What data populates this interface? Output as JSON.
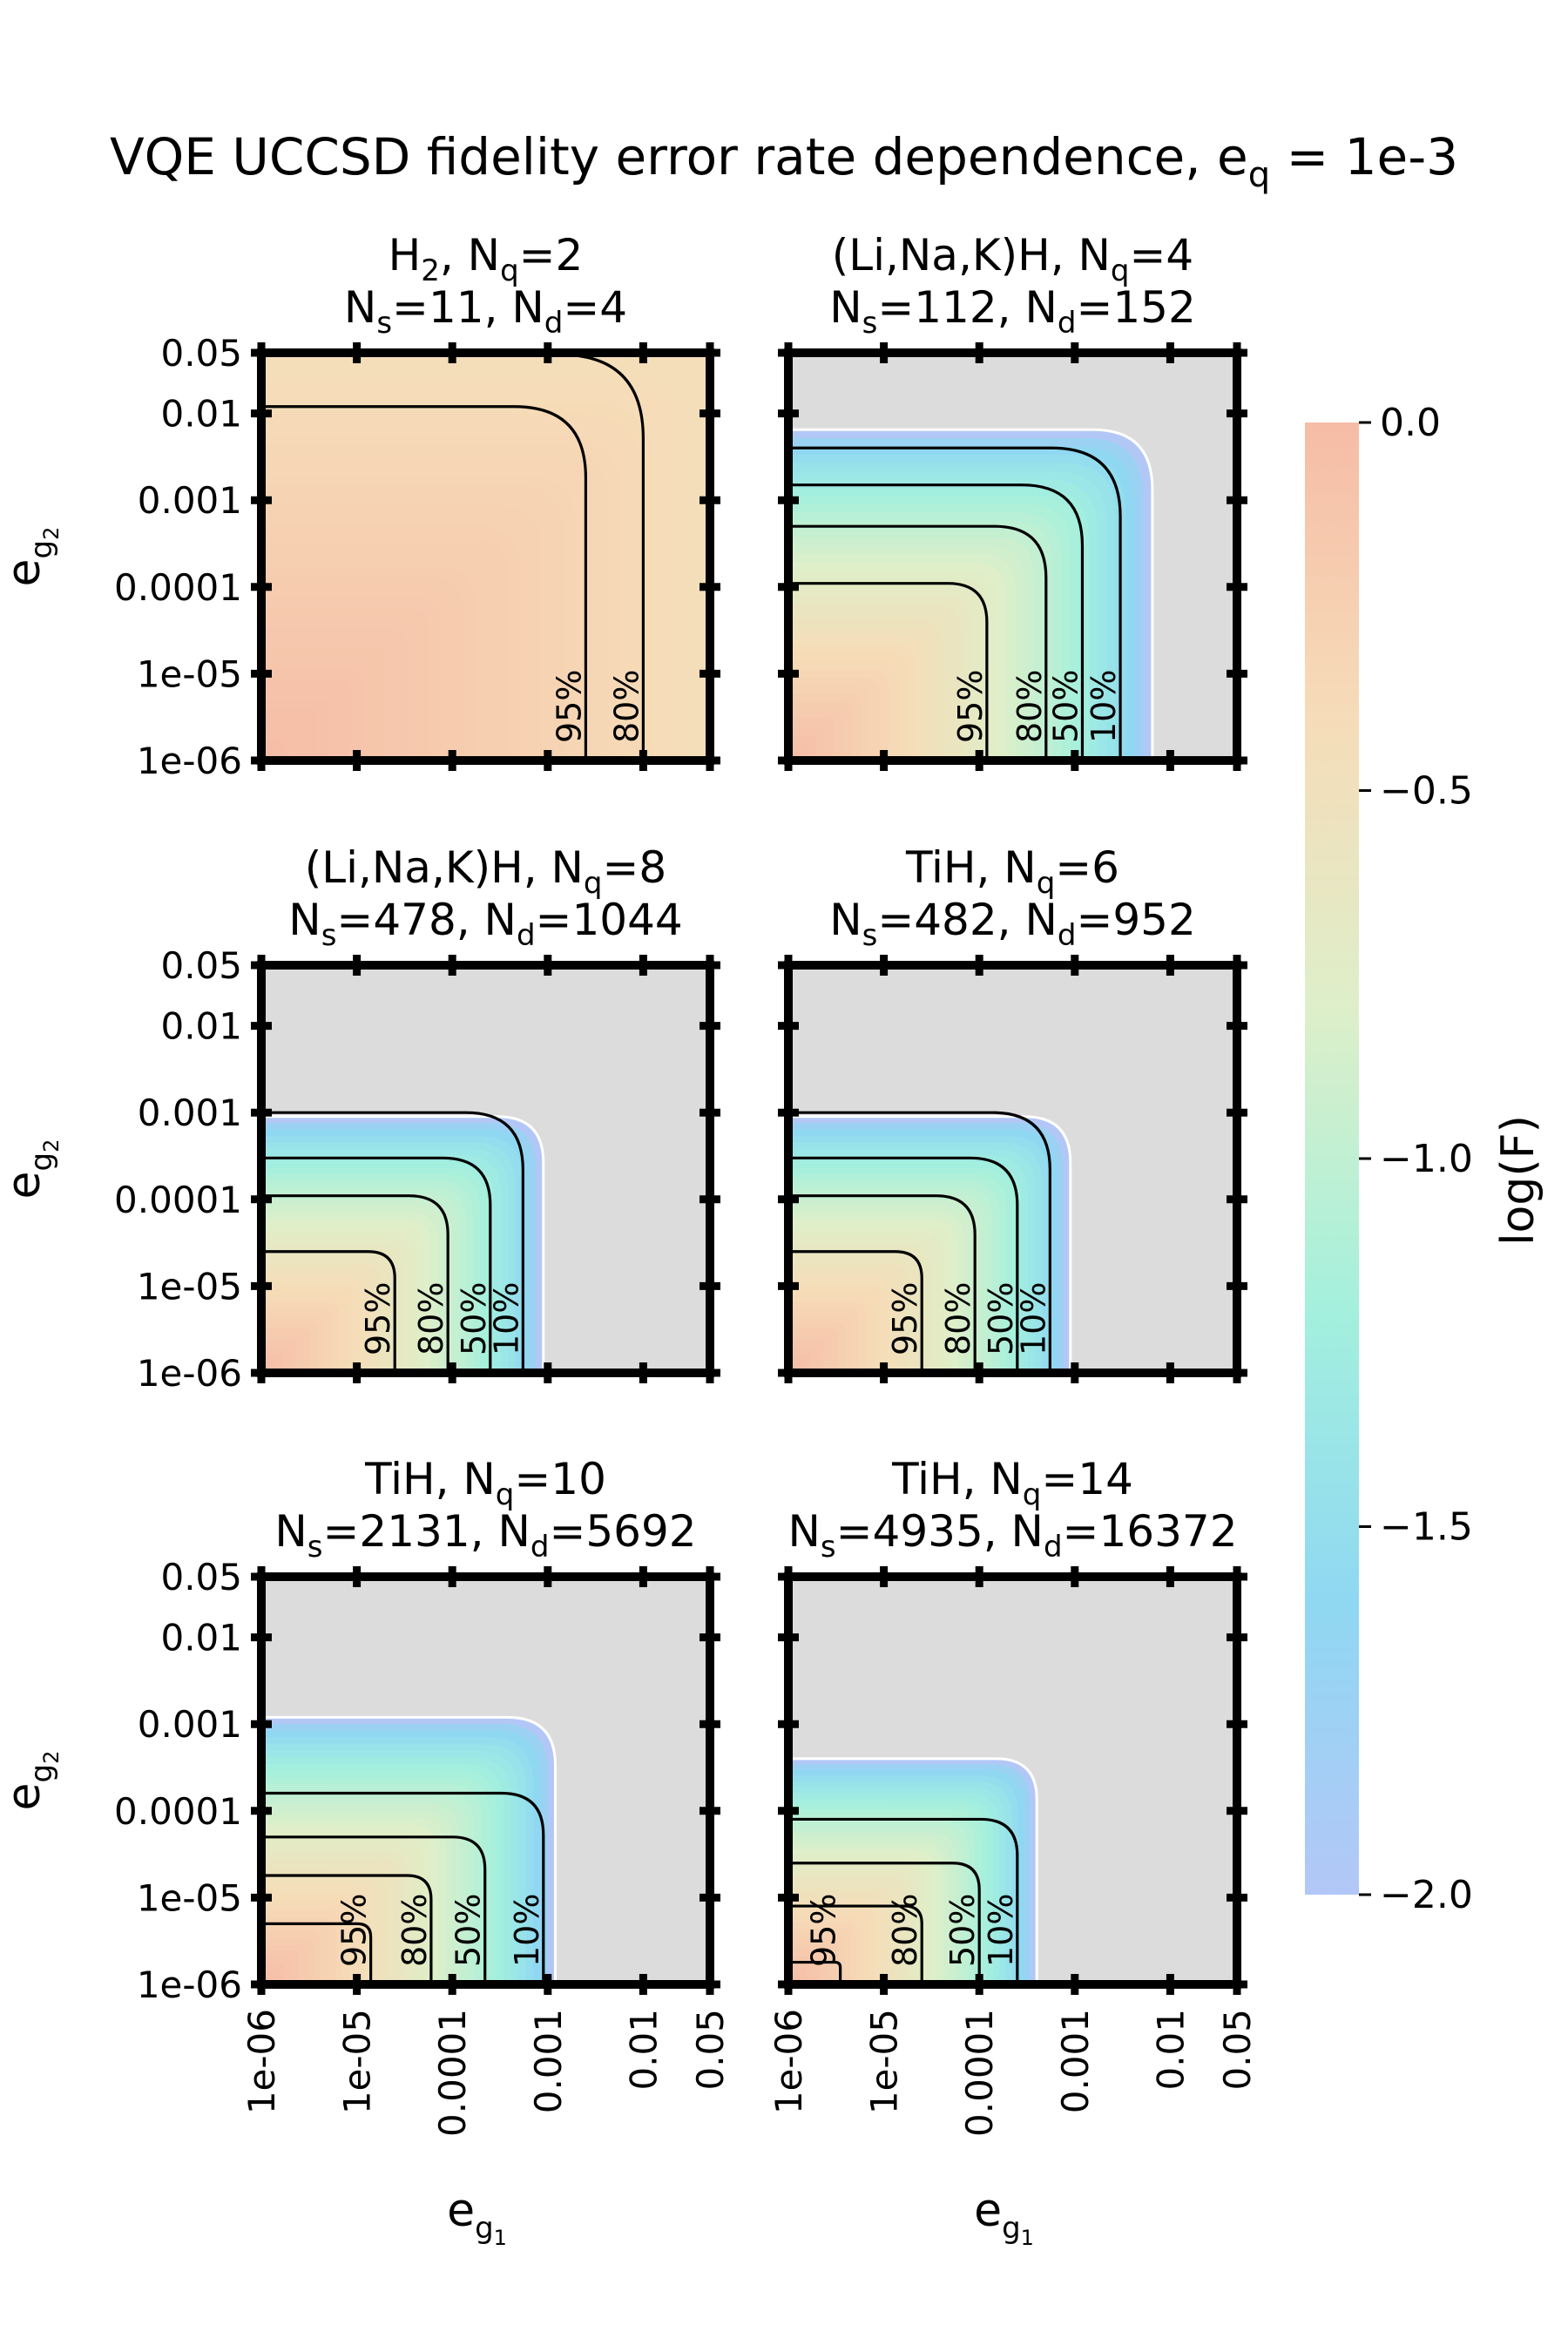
{
  "title": {
    "main": "VQE UCCSD fidelity error rate dependence, e",
    "sub": "q",
    "tail": " = 1e-3"
  },
  "colorbar": {
    "label": "log(F)",
    "ticks": [
      "0.0",
      "−0.5",
      "−1.0",
      "−1.5",
      "−2.0"
    ],
    "tick_values": [
      0.0,
      -0.5,
      -1.0,
      -1.5,
      -2.0
    ],
    "range": [
      -2.0,
      0.0
    ],
    "colors": [
      "#b3c7f7",
      "#8fd8f2",
      "#a4f0dd",
      "#ddefc9",
      "#f6dcb8",
      "#f6bca6"
    ]
  },
  "axis_labels": {
    "y": {
      "base": "e",
      "sub": "g",
      "subsub": "2"
    },
    "x": {
      "base": "e",
      "sub": "g",
      "subsub": "1"
    }
  },
  "y_ticks": [
    "0.05",
    "0.01",
    "0.001",
    "0.0001",
    "1e-05",
    "1e-06"
  ],
  "x_ticks": [
    "1e-06",
    "1e-05",
    "0.0001",
    "0.001",
    "0.01",
    "0.05"
  ],
  "chart_data": [
    {
      "type": "heatmap",
      "title_line1": {
        "pre": "H",
        "sub": "2",
        "post": ", N",
        "sub2": "q",
        "post2": "=2"
      },
      "title_line2": {
        "a": "N",
        "a_sub": "s",
        "a_val": "=11, ",
        "b": "N",
        "b_sub": "d",
        "b_val": "=4"
      },
      "xscale": "log",
      "yscale": "log",
      "xlim": [
        1e-06,
        0.05
      ],
      "ylim": [
        1e-06,
        0.05
      ],
      "contours": [
        {
          "label": "95%",
          "x_edge": 0.0025,
          "y_edge": 0.012
        },
        {
          "label": "80%",
          "x_edge": 0.01,
          "y_edge": 0.05
        }
      ],
      "gray_start": 0.2,
      "color_limit": 0.05
    },
    {
      "type": "heatmap",
      "title_line1": {
        "pre": "(Li,Na,K)H, N",
        "sub": "q",
        "post": "=4",
        "sub2": "",
        "post2": ""
      },
      "title_line2": {
        "a": "N",
        "a_sub": "s",
        "a_val": "=112, ",
        "b": "N",
        "b_sub": "d",
        "b_val": "=152"
      },
      "xscale": "log",
      "yscale": "log",
      "xlim": [
        1e-06,
        0.05
      ],
      "ylim": [
        1e-06,
        0.05
      ],
      "contours": [
        {
          "label": "95%",
          "x_edge": 0.00012,
          "y_edge": 0.00011
        },
        {
          "label": "80%",
          "x_edge": 0.0005,
          "y_edge": 0.0005
        },
        {
          "label": "50%",
          "x_edge": 0.0012,
          "y_edge": 0.0015
        },
        {
          "label": "10%",
          "x_edge": 0.003,
          "y_edge": 0.004
        }
      ],
      "gray_start": 0.006,
      "color_limit": 0.0065
    },
    {
      "type": "heatmap",
      "title_line1": {
        "pre": "(Li,Na,K)H, N",
        "sub": "q",
        "post": "=8",
        "sub2": "",
        "post2": ""
      },
      "title_line2": {
        "a": "N",
        "a_sub": "s",
        "a_val": "=478, ",
        "b": "N",
        "b_sub": "d",
        "b_val": "=1044"
      },
      "xscale": "log",
      "yscale": "log",
      "xlim": [
        1e-06,
        0.05
      ],
      "ylim": [
        1e-06,
        0.05
      ],
      "contours": [
        {
          "label": "95%",
          "x_edge": 2.5e-05,
          "y_edge": 2.5e-05
        },
        {
          "label": "80%",
          "x_edge": 9e-05,
          "y_edge": 0.00011
        },
        {
          "label": "50%",
          "x_edge": 0.00025,
          "y_edge": 0.0003
        },
        {
          "label": "10%",
          "x_edge": 0.00055,
          "y_edge": 0.001
        }
      ],
      "gray_start": 0.0008,
      "color_limit": 0.0009
    },
    {
      "type": "heatmap",
      "title_line1": {
        "pre": "TiH, N",
        "sub": "q",
        "post": "=6",
        "sub2": "",
        "post2": ""
      },
      "title_line2": {
        "a": "N",
        "a_sub": "s",
        "a_val": "=482, ",
        "b": "N",
        "b_sub": "d",
        "b_val": "=952"
      },
      "xscale": "log",
      "yscale": "log",
      "xlim": [
        1e-06,
        0.05
      ],
      "ylim": [
        1e-06,
        0.05
      ],
      "contours": [
        {
          "label": "95%",
          "x_edge": 2.5e-05,
          "y_edge": 2.5e-05
        },
        {
          "label": "80%",
          "x_edge": 9e-05,
          "y_edge": 0.00011
        },
        {
          "label": "50%",
          "x_edge": 0.00025,
          "y_edge": 0.0003
        },
        {
          "label": "10%",
          "x_edge": 0.00055,
          "y_edge": 0.001
        }
      ],
      "gray_start": 0.0008,
      "color_limit": 0.0009
    },
    {
      "type": "heatmap",
      "title_line1": {
        "pre": "TiH, N",
        "sub": "q",
        "post": "=10",
        "sub2": "",
        "post2": ""
      },
      "title_line2": {
        "a": "N",
        "a_sub": "s",
        "a_val": "=2131, ",
        "b": "N",
        "b_sub": "d",
        "b_val": "=5692"
      },
      "xscale": "log",
      "yscale": "log",
      "xlim": [
        1e-06,
        0.05
      ],
      "ylim": [
        1e-06,
        0.05
      ],
      "contours": [
        {
          "label": "95%",
          "x_edge": 1.4e-05,
          "y_edge": 5e-06
        },
        {
          "label": "80%",
          "x_edge": 6e-05,
          "y_edge": 1.8e-05
        },
        {
          "label": "50%",
          "x_edge": 0.00022,
          "y_edge": 5e-05
        },
        {
          "label": "10%",
          "x_edge": 0.0009,
          "y_edge": 0.00016
        }
      ],
      "gray_start": 0.0011,
      "color_limit": 0.0012
    },
    {
      "type": "heatmap",
      "title_line1": {
        "pre": "TiH, N",
        "sub": "q",
        "post": "=14",
        "sub2": "",
        "post2": ""
      },
      "title_line2": {
        "a": "N",
        "a_sub": "s",
        "a_val": "=4935, ",
        "b": "N",
        "b_sub": "d",
        "b_val": "=16372"
      },
      "xscale": "log",
      "yscale": "log",
      "xlim": [
        1e-06,
        0.05
      ],
      "ylim": [
        1e-06,
        0.05
      ],
      "contours": [
        {
          "label": "95%",
          "x_edge": 3.5e-06,
          "y_edge": 1.8e-06
        },
        {
          "label": "80%",
          "x_edge": 2.5e-05,
          "y_edge": 8e-06
        },
        {
          "label": "50%",
          "x_edge": 0.0001,
          "y_edge": 2.5e-05
        },
        {
          "label": "10%",
          "x_edge": 0.00025,
          "y_edge": 8e-05
        }
      ],
      "gray_start": 0.00035,
      "color_limit": 0.0004
    }
  ]
}
